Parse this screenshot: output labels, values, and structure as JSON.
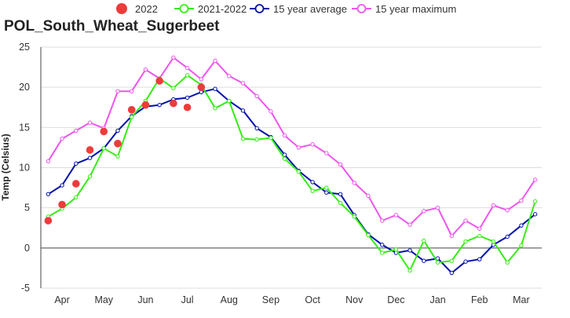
{
  "chart_data": {
    "type": "line",
    "title": "POL_South_Wheat_Sugerbeet",
    "ylabel": "Temp (Celsius)",
    "xlabel": "",
    "ylim": [
      -5,
      25
    ],
    "y_ticks": [
      -5,
      0,
      5,
      10,
      15,
      20,
      25
    ],
    "x_ticks": [
      {
        "label": "Apr",
        "x": 1.5
      },
      {
        "label": "May",
        "x": 4.5
      },
      {
        "label": "Jun",
        "x": 7.5
      },
      {
        "label": "Jul",
        "x": 10.5
      },
      {
        "label": "Aug",
        "x": 13.5
      },
      {
        "label": "Sep",
        "x": 16.5
      },
      {
        "label": "Oct",
        "x": 19.5
      },
      {
        "label": "Nov",
        "x": 22.5
      },
      {
        "label": "Dec",
        "x": 25.5
      },
      {
        "label": "Jan",
        "x": 28.5
      },
      {
        "label": "Feb",
        "x": 31.5
      },
      {
        "label": "Mar",
        "x": 34.5
      }
    ],
    "grid": true,
    "legend_position": "top",
    "series": [
      {
        "name": "2022",
        "style": "scatter",
        "color": "#ee3b3b",
        "values": [
          3.4,
          5.4,
          8.0,
          12.2,
          14.5,
          13.0,
          17.2,
          17.8,
          20.8,
          18.0,
          17.5,
          20.0
        ]
      },
      {
        "name": "2021-2022",
        "style": "line",
        "color": "#33ee11",
        "values": [
          3.9,
          4.9,
          6.3,
          8.9,
          12.4,
          11.4,
          16.3,
          18.3,
          21.1,
          19.9,
          21.5,
          20.3,
          17.4,
          18.3,
          13.6,
          13.5,
          13.7,
          11.1,
          9.5,
          7.1,
          7.5,
          5.6,
          3.9,
          1.6,
          -0.6,
          -0.2,
          -2.8,
          0.9,
          -1.8,
          -1.6,
          0.8,
          1.5,
          0.8,
          -1.8,
          0.3,
          5.8
        ]
      },
      {
        "name": "15 year average",
        "style": "line",
        "color": "#0011aa",
        "values": [
          6.7,
          7.8,
          10.5,
          11.2,
          12.4,
          14.6,
          16.4,
          17.6,
          17.8,
          18.5,
          18.7,
          19.4,
          19.8,
          18.3,
          17.1,
          14.9,
          13.8,
          11.6,
          9.6,
          8.2,
          6.9,
          6.7,
          4.1,
          1.7,
          0.4,
          -0.6,
          -0.3,
          -1.6,
          -1.3,
          -3.1,
          -1.7,
          -1.4,
          0.4,
          1.4,
          2.8,
          4.2
        ]
      },
      {
        "name": "15 year maximum",
        "style": "line",
        "color": "#ee55ee",
        "values": [
          10.8,
          13.6,
          14.6,
          15.6,
          14.9,
          19.5,
          19.5,
          22.2,
          21.1,
          23.7,
          22.4,
          21.0,
          23.3,
          21.4,
          20.5,
          18.9,
          17.0,
          14.0,
          12.5,
          12.9,
          11.8,
          10.4,
          8.1,
          6.5,
          3.4,
          4.1,
          2.9,
          4.6,
          5.0,
          1.5,
          3.4,
          2.4,
          5.3,
          4.7,
          5.9,
          8.5
        ]
      }
    ]
  }
}
